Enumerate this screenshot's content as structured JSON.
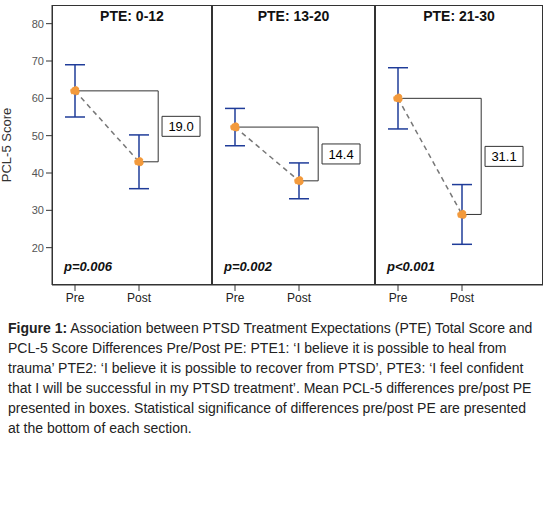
{
  "chart_data": [
    {
      "type": "line",
      "title": "PTE: 0-12",
      "y_label": "PCL-5 Score",
      "categories": [
        "Pre",
        "Post"
      ],
      "values": [
        62,
        43
      ],
      "errors": [
        7,
        7.2
      ],
      "difference": {
        "value": 19,
        "label": "19.0"
      },
      "p_value": "p=0.006",
      "ylim": [
        10,
        85
      ],
      "yticks": [
        20,
        30,
        40,
        50,
        60,
        70,
        80
      ],
      "color": "#f39a3c",
      "marker": "circle",
      "line_style": "dashed"
    },
    {
      "type": "line",
      "title": "PTE: 13-20",
      "categories": [
        "Pre",
        "Post"
      ],
      "values": [
        52.3,
        37.9
      ],
      "errors": [
        5,
        4.8
      ],
      "difference": {
        "value": 14.4,
        "label": "14.4"
      },
      "p_value": "p=0.002",
      "ylim": [
        10,
        85
      ],
      "yticks": [
        20,
        30,
        40,
        50,
        60,
        70,
        80
      ],
      "tick_labels": "x",
      "color": "#f39a3c",
      "marker": "circle",
      "line_style": "dashed"
    },
    {
      "type": "line",
      "title": "PTE: 21-30",
      "categories": [
        "Pre",
        "Post"
      ],
      "values": [
        60,
        28.9
      ],
      "errors": [
        8.2,
        8
      ],
      "difference": {
        "value": 31.1,
        "label": "31.1"
      },
      "p_value": "p<0.001",
      "ylim": [
        10,
        85
      ],
      "yticks": [
        20,
        30,
        40,
        50,
        60,
        70,
        80
      ],
      "tick_labels": "x",
      "color": "#f39a3c",
      "marker": "circle",
      "line_style": "dashed"
    }
  ],
  "caption": {
    "label": "Figure 1:",
    "text": "Association between PTSD Treatment Expectations (PTE) Total Score and PCL-5 Score Differences Pre/Post PE: PTE1: ‘I believe it is possible to heal from trauma’ PTE2: ‘I believe it is possible to recover from PTSD’, PTE3: ‘I feel confident that I will be successful in my PTSD treatment’. Mean PCL-5 differences pre/post PE presented in boxes. Statistical significance of differences pre/post PE are presented at the bottom of each section."
  }
}
